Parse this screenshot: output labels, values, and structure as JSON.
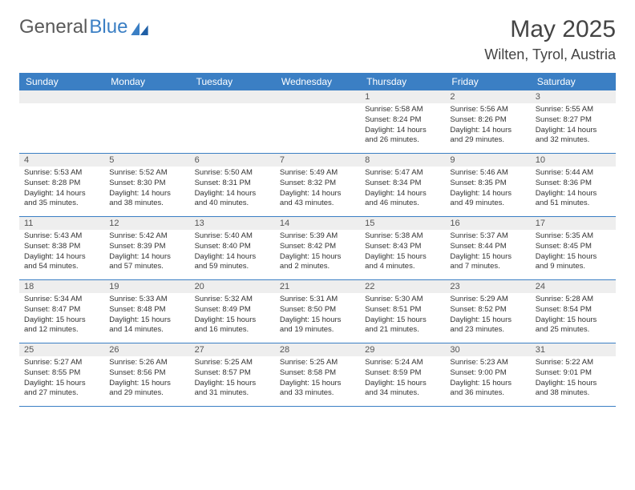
{
  "logo": {
    "text_gray": "General",
    "text_blue": "Blue"
  },
  "header": {
    "month": "May 2025",
    "location": "Wilten, Tyrol, Austria"
  },
  "colors": {
    "header_bar": "#3b7fc4",
    "day_number_bg": "#eeeeee",
    "rule": "#3b7fc4"
  },
  "weekdays": [
    "Sunday",
    "Monday",
    "Tuesday",
    "Wednesday",
    "Thursday",
    "Friday",
    "Saturday"
  ],
  "weeks": [
    [
      {
        "n": "",
        "sunrise": "",
        "sunset": "",
        "daylight": ""
      },
      {
        "n": "",
        "sunrise": "",
        "sunset": "",
        "daylight": ""
      },
      {
        "n": "",
        "sunrise": "",
        "sunset": "",
        "daylight": ""
      },
      {
        "n": "",
        "sunrise": "",
        "sunset": "",
        "daylight": ""
      },
      {
        "n": "1",
        "sunrise": "Sunrise: 5:58 AM",
        "sunset": "Sunset: 8:24 PM",
        "daylight": "Daylight: 14 hours and 26 minutes."
      },
      {
        "n": "2",
        "sunrise": "Sunrise: 5:56 AM",
        "sunset": "Sunset: 8:26 PM",
        "daylight": "Daylight: 14 hours and 29 minutes."
      },
      {
        "n": "3",
        "sunrise": "Sunrise: 5:55 AM",
        "sunset": "Sunset: 8:27 PM",
        "daylight": "Daylight: 14 hours and 32 minutes."
      }
    ],
    [
      {
        "n": "4",
        "sunrise": "Sunrise: 5:53 AM",
        "sunset": "Sunset: 8:28 PM",
        "daylight": "Daylight: 14 hours and 35 minutes."
      },
      {
        "n": "5",
        "sunrise": "Sunrise: 5:52 AM",
        "sunset": "Sunset: 8:30 PM",
        "daylight": "Daylight: 14 hours and 38 minutes."
      },
      {
        "n": "6",
        "sunrise": "Sunrise: 5:50 AM",
        "sunset": "Sunset: 8:31 PM",
        "daylight": "Daylight: 14 hours and 40 minutes."
      },
      {
        "n": "7",
        "sunrise": "Sunrise: 5:49 AM",
        "sunset": "Sunset: 8:32 PM",
        "daylight": "Daylight: 14 hours and 43 minutes."
      },
      {
        "n": "8",
        "sunrise": "Sunrise: 5:47 AM",
        "sunset": "Sunset: 8:34 PM",
        "daylight": "Daylight: 14 hours and 46 minutes."
      },
      {
        "n": "9",
        "sunrise": "Sunrise: 5:46 AM",
        "sunset": "Sunset: 8:35 PM",
        "daylight": "Daylight: 14 hours and 49 minutes."
      },
      {
        "n": "10",
        "sunrise": "Sunrise: 5:44 AM",
        "sunset": "Sunset: 8:36 PM",
        "daylight": "Daylight: 14 hours and 51 minutes."
      }
    ],
    [
      {
        "n": "11",
        "sunrise": "Sunrise: 5:43 AM",
        "sunset": "Sunset: 8:38 PM",
        "daylight": "Daylight: 14 hours and 54 minutes."
      },
      {
        "n": "12",
        "sunrise": "Sunrise: 5:42 AM",
        "sunset": "Sunset: 8:39 PM",
        "daylight": "Daylight: 14 hours and 57 minutes."
      },
      {
        "n": "13",
        "sunrise": "Sunrise: 5:40 AM",
        "sunset": "Sunset: 8:40 PM",
        "daylight": "Daylight: 14 hours and 59 minutes."
      },
      {
        "n": "14",
        "sunrise": "Sunrise: 5:39 AM",
        "sunset": "Sunset: 8:42 PM",
        "daylight": "Daylight: 15 hours and 2 minutes."
      },
      {
        "n": "15",
        "sunrise": "Sunrise: 5:38 AM",
        "sunset": "Sunset: 8:43 PM",
        "daylight": "Daylight: 15 hours and 4 minutes."
      },
      {
        "n": "16",
        "sunrise": "Sunrise: 5:37 AM",
        "sunset": "Sunset: 8:44 PM",
        "daylight": "Daylight: 15 hours and 7 minutes."
      },
      {
        "n": "17",
        "sunrise": "Sunrise: 5:35 AM",
        "sunset": "Sunset: 8:45 PM",
        "daylight": "Daylight: 15 hours and 9 minutes."
      }
    ],
    [
      {
        "n": "18",
        "sunrise": "Sunrise: 5:34 AM",
        "sunset": "Sunset: 8:47 PM",
        "daylight": "Daylight: 15 hours and 12 minutes."
      },
      {
        "n": "19",
        "sunrise": "Sunrise: 5:33 AM",
        "sunset": "Sunset: 8:48 PM",
        "daylight": "Daylight: 15 hours and 14 minutes."
      },
      {
        "n": "20",
        "sunrise": "Sunrise: 5:32 AM",
        "sunset": "Sunset: 8:49 PM",
        "daylight": "Daylight: 15 hours and 16 minutes."
      },
      {
        "n": "21",
        "sunrise": "Sunrise: 5:31 AM",
        "sunset": "Sunset: 8:50 PM",
        "daylight": "Daylight: 15 hours and 19 minutes."
      },
      {
        "n": "22",
        "sunrise": "Sunrise: 5:30 AM",
        "sunset": "Sunset: 8:51 PM",
        "daylight": "Daylight: 15 hours and 21 minutes."
      },
      {
        "n": "23",
        "sunrise": "Sunrise: 5:29 AM",
        "sunset": "Sunset: 8:52 PM",
        "daylight": "Daylight: 15 hours and 23 minutes."
      },
      {
        "n": "24",
        "sunrise": "Sunrise: 5:28 AM",
        "sunset": "Sunset: 8:54 PM",
        "daylight": "Daylight: 15 hours and 25 minutes."
      }
    ],
    [
      {
        "n": "25",
        "sunrise": "Sunrise: 5:27 AM",
        "sunset": "Sunset: 8:55 PM",
        "daylight": "Daylight: 15 hours and 27 minutes."
      },
      {
        "n": "26",
        "sunrise": "Sunrise: 5:26 AM",
        "sunset": "Sunset: 8:56 PM",
        "daylight": "Daylight: 15 hours and 29 minutes."
      },
      {
        "n": "27",
        "sunrise": "Sunrise: 5:25 AM",
        "sunset": "Sunset: 8:57 PM",
        "daylight": "Daylight: 15 hours and 31 minutes."
      },
      {
        "n": "28",
        "sunrise": "Sunrise: 5:25 AM",
        "sunset": "Sunset: 8:58 PM",
        "daylight": "Daylight: 15 hours and 33 minutes."
      },
      {
        "n": "29",
        "sunrise": "Sunrise: 5:24 AM",
        "sunset": "Sunset: 8:59 PM",
        "daylight": "Daylight: 15 hours and 34 minutes."
      },
      {
        "n": "30",
        "sunrise": "Sunrise: 5:23 AM",
        "sunset": "Sunset: 9:00 PM",
        "daylight": "Daylight: 15 hours and 36 minutes."
      },
      {
        "n": "31",
        "sunrise": "Sunrise: 5:22 AM",
        "sunset": "Sunset: 9:01 PM",
        "daylight": "Daylight: 15 hours and 38 minutes."
      }
    ]
  ]
}
